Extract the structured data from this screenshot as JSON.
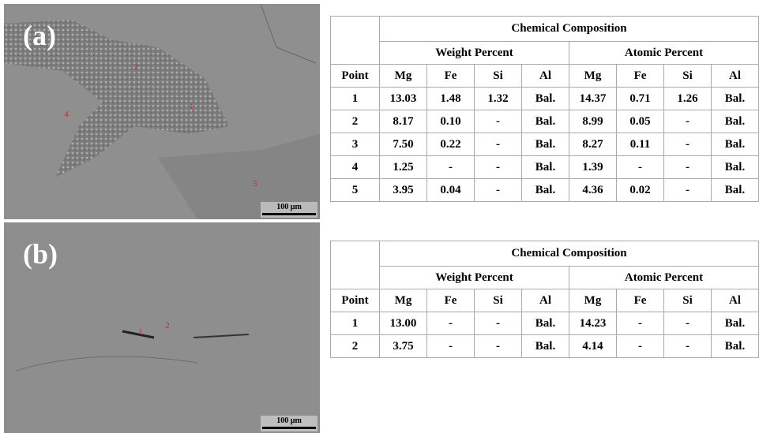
{
  "panels": [
    {
      "label": "(a)",
      "scale_bar": "100 µm",
      "points": [
        "2",
        "1",
        "4",
        "5"
      ],
      "table": {
        "title": "Chemical Composition",
        "groups": [
          "Weight Percent",
          "Atomic Percent"
        ],
        "header": [
          "Point",
          "Mg",
          "Fe",
          "Si",
          "Al",
          "Mg",
          "Fe",
          "Si",
          "Al"
        ],
        "rows": [
          [
            "1",
            "13.03",
            "1.48",
            "1.32",
            "Bal.",
            "14.37",
            "0.71",
            "1.26",
            "Bal."
          ],
          [
            "2",
            "8.17",
            "0.10",
            "-",
            "Bal.",
            "8.99",
            "0.05",
            "-",
            "Bal."
          ],
          [
            "3",
            "7.50",
            "0.22",
            "-",
            "Bal.",
            "8.27",
            "0.11",
            "-",
            "Bal."
          ],
          [
            "4",
            "1.25",
            "-",
            "-",
            "Bal.",
            "1.39",
            "-",
            "-",
            "Bal."
          ],
          [
            "5",
            "3.95",
            "0.04",
            "-",
            "Bal.",
            "4.36",
            "0.02",
            "-",
            "Bal."
          ]
        ]
      }
    },
    {
      "label": "(b)",
      "scale_bar": "100 µm",
      "points": [
        "1",
        "2"
      ],
      "table": {
        "title": "Chemical Composition",
        "groups": [
          "Weight Percent",
          "Atomic Percent"
        ],
        "header": [
          "Point",
          "Mg",
          "Fe",
          "Si",
          "Al",
          "Mg",
          "Fe",
          "Si",
          "Al"
        ],
        "rows": [
          [
            "1",
            "13.00",
            "-",
            "-",
            "Bal.",
            "14.23",
            "-",
            "-",
            "Bal."
          ],
          [
            "2",
            "3.75",
            "-",
            "-",
            "Bal.",
            "4.14",
            "-",
            "-",
            "Bal."
          ]
        ]
      }
    }
  ]
}
